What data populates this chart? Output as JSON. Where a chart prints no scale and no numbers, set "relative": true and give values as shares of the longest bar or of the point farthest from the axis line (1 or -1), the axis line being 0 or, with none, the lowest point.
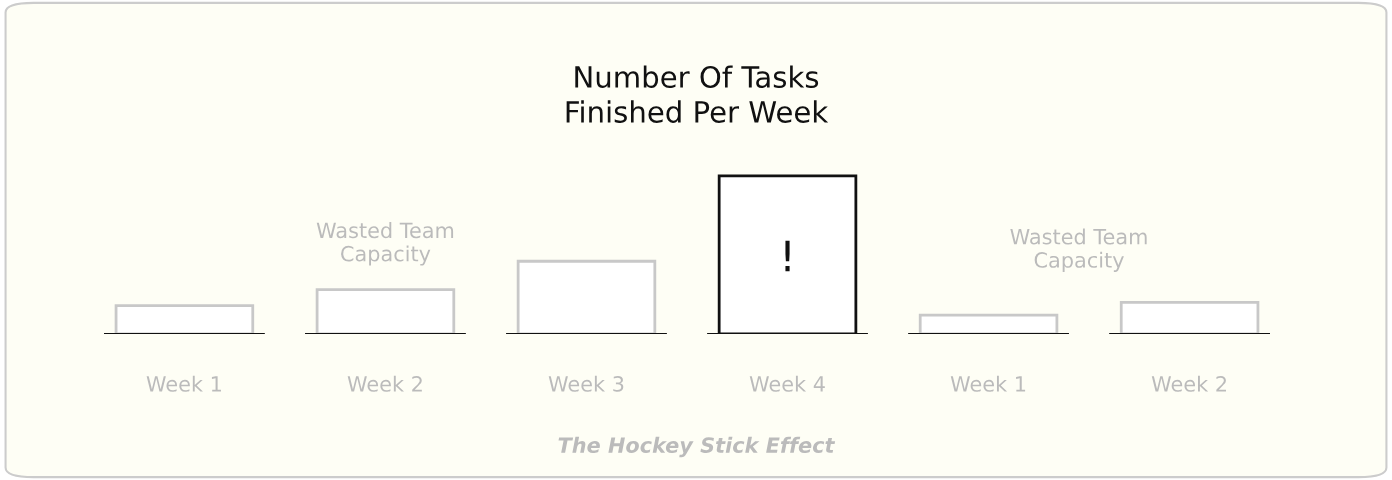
{
  "chart_data": {
    "type": "bar",
    "title": "Number Of Tasks\nFinished Per Week",
    "relative": true,
    "categories": [
      "Week 1",
      "Week 2",
      "Week 3",
      "Week 4",
      "Week 1",
      "Week 2"
    ],
    "values": [
      0.18,
      0.28,
      0.46,
      1,
      0.12,
      0.2
    ],
    "colors": [
      "#ffffff",
      "#ffffff",
      "#ffffff",
      "#ffffff",
      "#ffffff",
      "#ffffff"
    ],
    "annotations": [
      "Wasted Team\nCapacity",
      "!",
      "Wasted Team\nCapacity",
      "The Hockey Stick Effect"
    ]
  }
}
